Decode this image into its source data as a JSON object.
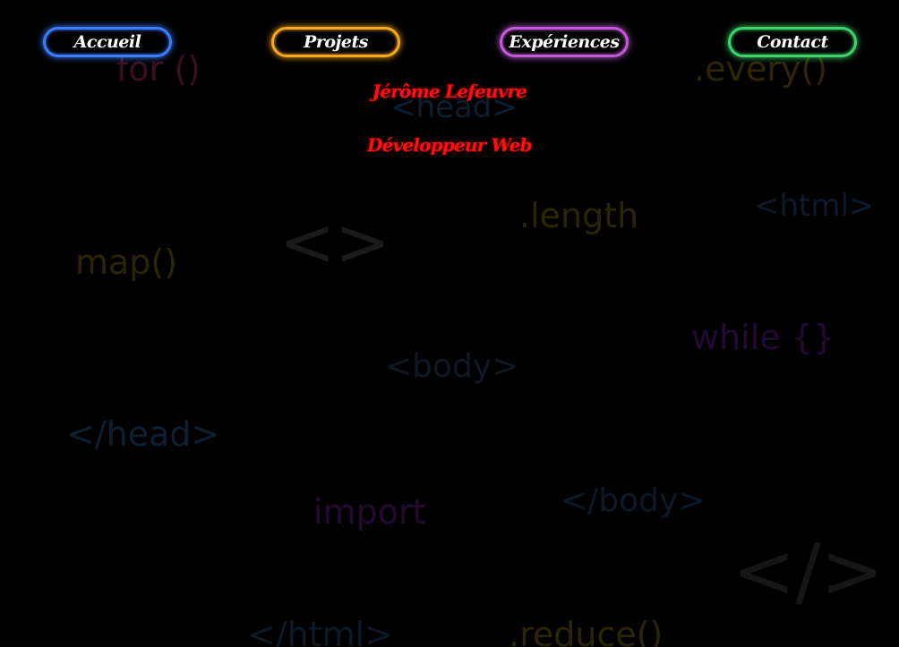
{
  "colors": {
    "background": "#000000",
    "accueil": "#3d7bff",
    "projets": "#f5a623",
    "experiences": "#c05ad6",
    "contact": "#3fd16a",
    "hero": "#ff1010"
  },
  "nav": {
    "accueil": "Accueil",
    "projets": "Projets",
    "experiences": "Expériences",
    "contact": "Contact"
  },
  "hero": {
    "name": "Jérôme Lefeuvre",
    "role": "Développeur Web"
  },
  "background_words": [
    {
      "text": "for ()",
      "color": "#3a0f22"
    },
    {
      "text": ".every()",
      "color": "#2e2508"
    },
    {
      "text": "<head>",
      "color": "#0d1e2c"
    },
    {
      "text": "<html>",
      "color": "#0d1a2a"
    },
    {
      "text": ".length",
      "color": "#2b2508"
    },
    {
      "text": "<>",
      "color": "#1a1a1a"
    },
    {
      "text": "map()",
      "color": "#2b2508"
    },
    {
      "text": "while {}",
      "color": "#220a33"
    },
    {
      "text": "<body>",
      "color": "#101824"
    },
    {
      "text": "</head>",
      "color": "#0d2030"
    },
    {
      "text": "import",
      "color": "#240a30"
    },
    {
      "text": "</body>",
      "color": "#0d1a26"
    },
    {
      "text": "</>",
      "color": "#161616"
    },
    {
      "text": "</html>",
      "color": "#0d1a26"
    },
    {
      "text": ".reduce()",
      "color": "#2b2508"
    }
  ]
}
